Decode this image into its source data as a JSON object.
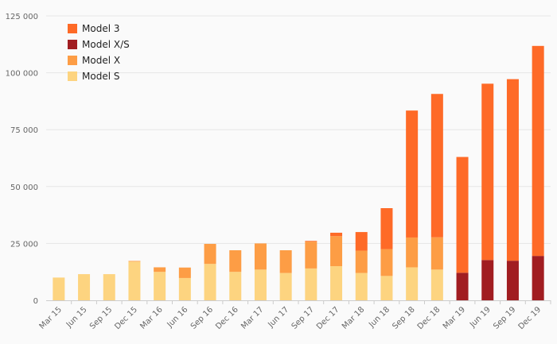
{
  "chart_data": {
    "type": "bar",
    "stacked": true,
    "title": "",
    "xlabel": "",
    "ylabel": "",
    "ylim": [
      0,
      125000
    ],
    "y_ticks": [
      0,
      25000,
      50000,
      75000,
      100000,
      125000
    ],
    "y_tick_labels": [
      "0",
      "25 000",
      "50 000",
      "75 000",
      "100 000",
      "125 000"
    ],
    "grid": true,
    "legend_position": "top-left",
    "categories": [
      "Mar 15",
      "Jun 15",
      "Sep 15",
      "Dec 15",
      "Mar 16",
      "Jun 16",
      "Sep 16",
      "Dec 16",
      "Mar 17",
      "Jun 17",
      "Sep 17",
      "Dec 17",
      "Mar 18",
      "Jun 18",
      "Sep 18",
      "Dec 18",
      "Mar 19",
      "Jun 19",
      "Sep 19",
      "Dec 19"
    ],
    "series": [
      {
        "name": "Model S",
        "color": "#fdd480",
        "values": [
          10000,
          11500,
          11500,
          17000,
          12500,
          9800,
          16000,
          12500,
          13500,
          12000,
          14000,
          15000,
          12000,
          10700,
          14500,
          13500,
          0,
          0,
          0,
          0
        ]
      },
      {
        "name": "Model X",
        "color": "#fd9d45",
        "values": [
          0,
          0,
          0,
          300,
          2000,
          4600,
          8800,
          9500,
          11500,
          10000,
          11800,
          13200,
          9800,
          11800,
          13100,
          14200,
          0,
          0,
          0,
          0
        ]
      },
      {
        "name": "Model X/S",
        "color": "#a11d21",
        "values": [
          0,
          0,
          0,
          0,
          0,
          0,
          0,
          0,
          0,
          0,
          0,
          0,
          0,
          0,
          0,
          0,
          12100,
          17700,
          17400,
          19500
        ]
      },
      {
        "name": "Model 3",
        "color": "#fe6a27",
        "values": [
          0,
          0,
          0,
          0,
          0,
          0,
          0,
          0,
          0,
          0,
          300,
          1500,
          8200,
          18000,
          55800,
          63000,
          50900,
          77500,
          79800,
          92300
        ]
      }
    ],
    "legend_order": [
      "Model 3",
      "Model X/S",
      "Model X",
      "Model S"
    ]
  }
}
